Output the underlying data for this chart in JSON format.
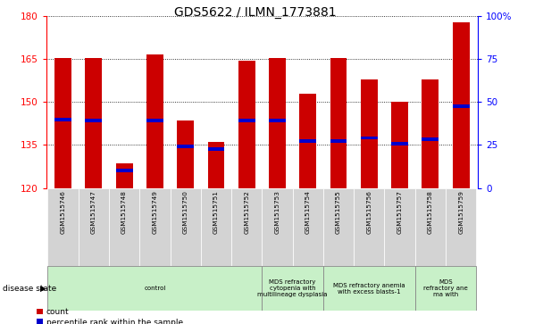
{
  "title": "GDS5622 / ILMN_1773881",
  "samples": [
    "GSM1515746",
    "GSM1515747",
    "GSM1515748",
    "GSM1515749",
    "GSM1515750",
    "GSM1515751",
    "GSM1515752",
    "GSM1515753",
    "GSM1515754",
    "GSM1515755",
    "GSM1515756",
    "GSM1515757",
    "GSM1515758",
    "GSM1515759"
  ],
  "counts": [
    165.5,
    165.5,
    128.5,
    166.5,
    143.5,
    136.0,
    164.5,
    165.5,
    153.0,
    165.5,
    158.0,
    150.0,
    158.0,
    178.0
  ],
  "percentile_values": [
    144.0,
    143.5,
    126.0,
    143.5,
    134.5,
    133.5,
    143.5,
    143.5,
    136.5,
    136.5,
    137.5,
    135.5,
    137.0,
    148.5
  ],
  "ymin": 120,
  "ymax": 180,
  "yticks": [
    120,
    135,
    150,
    165,
    180
  ],
  "y2ticks_vals": [
    0,
    25,
    50,
    75,
    100
  ],
  "y2ticks_labels": [
    "0",
    "25",
    "50",
    "75",
    "100%"
  ],
  "bar_color": "#cc0000",
  "blue_color": "#0000cc",
  "sample_bg": "#d3d3d3",
  "disease_groups": [
    {
      "label": "control",
      "start": 0,
      "end": 7,
      "color": "#c8f0c8"
    },
    {
      "label": "MDS refractory\ncytopenia with\nmultilineage dysplasia",
      "start": 7,
      "end": 9,
      "color": "#c8f0c8"
    },
    {
      "label": "MDS refractory anemia\nwith excess blasts-1",
      "start": 9,
      "end": 12,
      "color": "#c8f0c8"
    },
    {
      "label": "MDS\nrefractory ane\nma with",
      "start": 12,
      "end": 14,
      "color": "#c8f0c8"
    }
  ],
  "legend_items": [
    {
      "label": "count",
      "color": "#cc0000"
    },
    {
      "label": "percentile rank within the sample",
      "color": "#0000cc"
    }
  ]
}
